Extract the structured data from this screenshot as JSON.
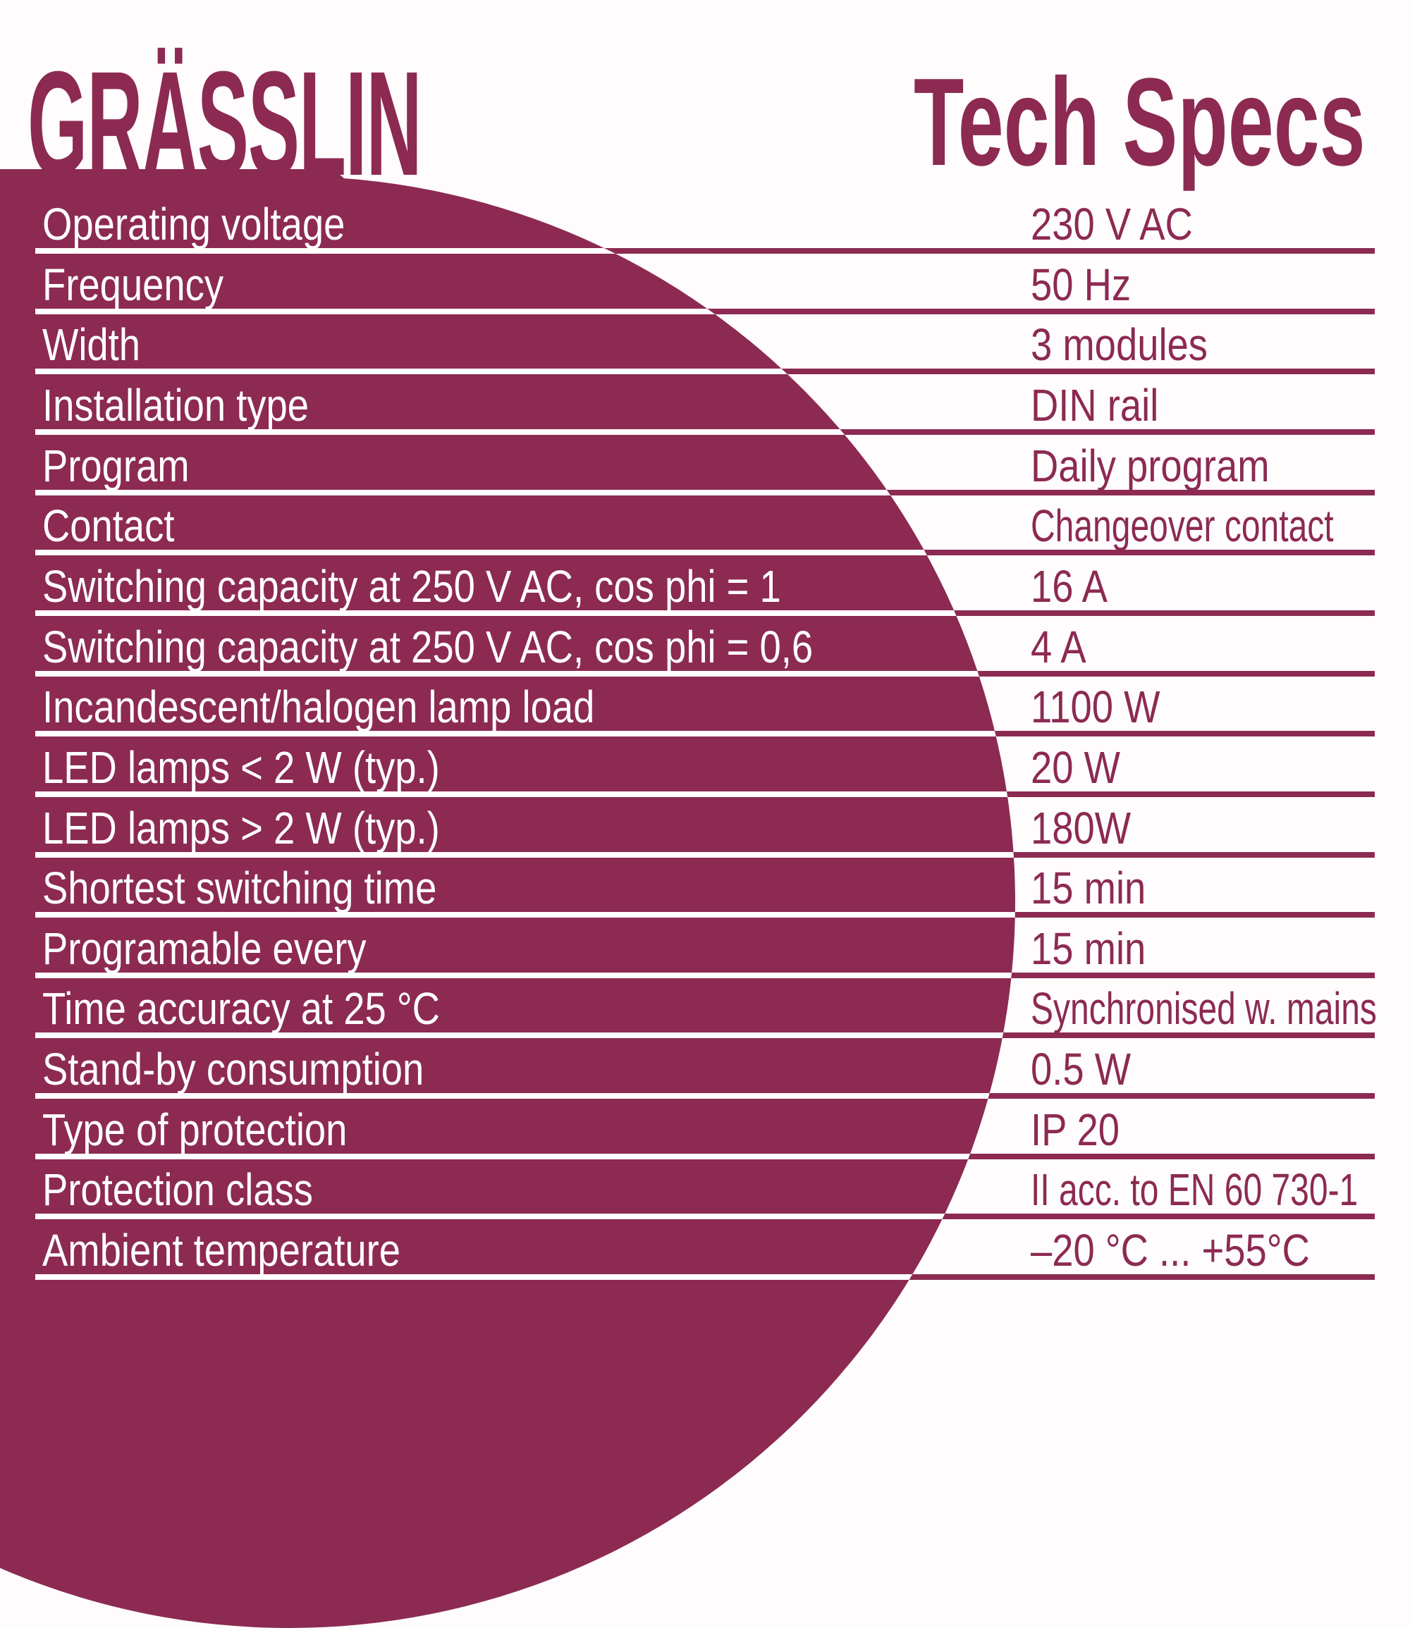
{
  "page": {
    "accent_color": "#8c2a52",
    "background_color": "#fefcfd",
    "line_white_color": "#ffffff"
  },
  "header": {
    "logo_text": "GRÄSSLIN",
    "title": "Tech Specs"
  },
  "specs": [
    {
      "label": "Operating voltage",
      "value": "230 V AC",
      "narrow": false
    },
    {
      "label": "Frequency",
      "value": "50 Hz",
      "narrow": false
    },
    {
      "label": "Width",
      "value": "3 modules",
      "narrow": false
    },
    {
      "label": "Installation type",
      "value": "DIN rail",
      "narrow": false
    },
    {
      "label": "Program",
      "value": "Daily program",
      "narrow": false
    },
    {
      "label": "Contact",
      "value": "Changeover contact",
      "narrow": true
    },
    {
      "label": "Switching capacity at 250 V AC, cos phi = 1",
      "value": "16 A",
      "narrow": false
    },
    {
      "label": "Switching capacity at 250 V AC, cos phi = 0,6",
      "value": "4 A",
      "narrow": false
    },
    {
      "label": "Incandescent/halogen lamp load",
      "value": "1100 W",
      "narrow": false
    },
    {
      "label": "LED lamps < 2 W (typ.)",
      "value": "20 W",
      "narrow": false
    },
    {
      "label": "LED lamps > 2 W (typ.)",
      "value": "180W",
      "narrow": false
    },
    {
      "label": "Shortest switching time",
      "value": "15 min",
      "narrow": false
    },
    {
      "label": "Programable every",
      "value": "15 min",
      "narrow": false
    },
    {
      "label": "Time accuracy at 25 °C",
      "value": "Synchronised w. mains",
      "narrow": true
    },
    {
      "label": "Stand-by consumption",
      "value": "0.5 W",
      "narrow": false
    },
    {
      "label": "Type of protection",
      "value": "IP 20",
      "narrow": false
    },
    {
      "label": "Protection class",
      "value": "II acc. to EN 60 730-1",
      "narrow": true
    },
    {
      "label": "Ambient temperature",
      "value": "–20 °C ... +55°C",
      "narrow": false
    }
  ]
}
